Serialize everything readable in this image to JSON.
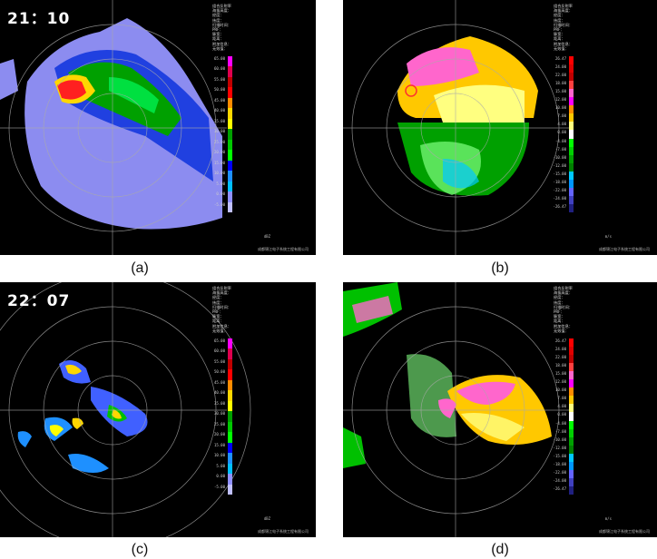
{
  "figure": {
    "panels": [
      {
        "id": "a",
        "caption": "(a)",
        "time": "21：10",
        "product": "dBZ",
        "scale_labels": [
          "65.00",
          "60.00",
          "55.00",
          "50.00",
          "45.00",
          "40.00",
          "35.00",
          "30.00",
          "25.00",
          "20.00",
          "15.00",
          "10.00",
          "5.00",
          "0.00",
          "-5.00"
        ],
        "scale_colors": [
          "#ff00ff",
          "#e0004f",
          "#c00000",
          "#ff0000",
          "#ff8c00",
          "#ffd700",
          "#ffff00",
          "#00a000",
          "#00c800",
          "#00ff00",
          "#0000ff",
          "#1e90ff",
          "#00bfff",
          "#9090ff",
          "#c0c0ff"
        ]
      },
      {
        "id": "b",
        "caption": "(b)",
        "time": "",
        "product": "m/s",
        "scale_labels": [
          "26.47",
          "24.00",
          "22.00",
          "18.00",
          "15.00",
          "12.00",
          "10.00",
          "7.00",
          "4.00",
          "0.00",
          "-4.00",
          "-7.00",
          "-10.00",
          "-12.00",
          "-15.00",
          "-18.00",
          "-22.00",
          "-24.00",
          "-26.47"
        ],
        "scale_colors": [
          "#ff0000",
          "#e00000",
          "#c00000",
          "#ff4040",
          "#ff66cc",
          "#ff00ff",
          "#ff8c00",
          "#ffc800",
          "#ffff80",
          "#ffffff",
          "#00ff00",
          "#00d000",
          "#00a000",
          "#008000",
          "#00c8ff",
          "#0096ff",
          "#6464ff",
          "#4040c0",
          "#202080"
        ]
      },
      {
        "id": "c",
        "caption": "(c)",
        "time": "22：07",
        "product": "dBZ",
        "scale_labels": [
          "65.00",
          "60.00",
          "55.00",
          "50.00",
          "45.00",
          "40.00",
          "35.00",
          "30.00",
          "25.00",
          "20.00",
          "15.00",
          "10.00",
          "5.00",
          "0.00",
          "-5.00"
        ],
        "scale_colors": [
          "#ff00ff",
          "#e0004f",
          "#c00000",
          "#ff0000",
          "#ff8c00",
          "#ffd700",
          "#ffff00",
          "#00a000",
          "#00c800",
          "#00ff00",
          "#0000ff",
          "#1e90ff",
          "#00bfff",
          "#9090ff",
          "#c0c0ff"
        ]
      },
      {
        "id": "d",
        "caption": "(d)",
        "time": "",
        "product": "m/s",
        "scale_labels": [
          "26.47",
          "24.00",
          "22.00",
          "18.00",
          "15.00",
          "12.00",
          "10.00",
          "7.00",
          "4.00",
          "0.00",
          "-4.00",
          "-7.00",
          "-10.00",
          "-12.00",
          "-15.00",
          "-18.00",
          "-22.00",
          "-24.00",
          "-26.47"
        ],
        "scale_colors": [
          "#ff0000",
          "#e00000",
          "#c00000",
          "#ff4040",
          "#ff66cc",
          "#ff00ff",
          "#ff8c00",
          "#ffc800",
          "#ffff80",
          "#ffffff",
          "#00ff00",
          "#00d000",
          "#00a000",
          "#008000",
          "#00c8ff",
          "#0096ff",
          "#6464ff",
          "#4040c0",
          "#202080"
        ]
      }
    ],
    "footer_text": "成都锦江电子系统工程有限公司",
    "legend_lines": [
      "组合反射率",
      "海拔高度：",
      "经度：",
      "纬度：",
      "扫描时间：",
      "PRF：",
      "脉宽：",
      "距离：",
      "附加信息：",
      "无效值："
    ]
  }
}
